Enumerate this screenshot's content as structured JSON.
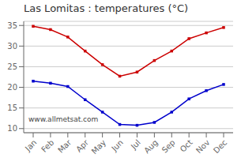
{
  "chart_data": {
    "type": "line",
    "title": "Las Lomitas : temperatures (°C)",
    "categories": [
      "Jan",
      "Feb",
      "Mar",
      "Apr",
      "May",
      "Jun",
      "Jul",
      "Aug",
      "Sep",
      "Oct",
      "Nov",
      "Dec"
    ],
    "series": [
      {
        "color": "#cc0000",
        "marker": "square",
        "values": [
          34.8,
          34.0,
          32.2,
          28.8,
          25.5,
          22.7,
          23.7,
          26.5,
          28.8,
          31.8,
          33.2,
          34.5
        ]
      },
      {
        "color": "#0000cc",
        "marker": "square",
        "values": [
          21.5,
          21.0,
          20.2,
          17.0,
          14.0,
          11.0,
          10.8,
          11.5,
          14.0,
          17.2,
          19.2,
          20.7
        ]
      }
    ],
    "ylim": [
      9,
      36
    ],
    "yticks": [
      10,
      15,
      20,
      25,
      30,
      35
    ],
    "grid": true,
    "annotations": [
      "www.allmetsat.com"
    ]
  }
}
